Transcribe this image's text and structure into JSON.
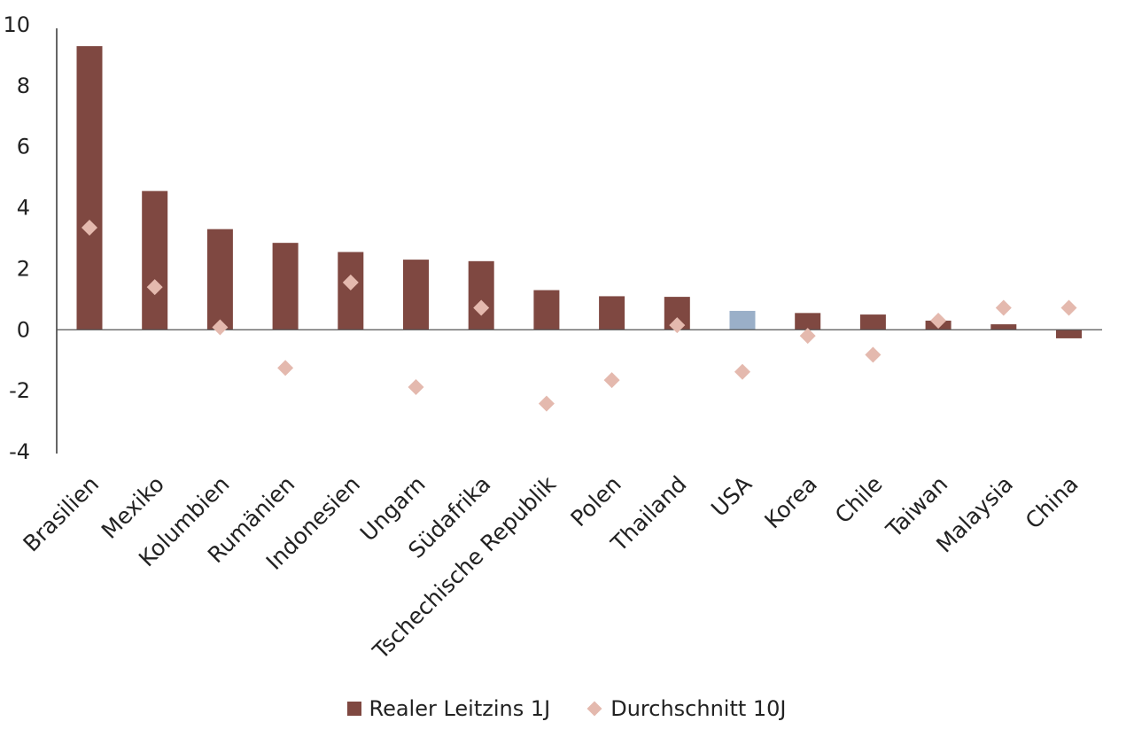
{
  "chart_data": {
    "type": "bar",
    "categories": [
      "Brasilien",
      "Mexiko",
      "Kolumbien",
      "Rumänien",
      "Indonesien",
      "Ungarn",
      "Südafrika",
      "Tschechische Republik",
      "Polen",
      "Thailand",
      "USA",
      "Korea",
      "Chile",
      "Taiwan",
      "Malaysia",
      "China"
    ],
    "series": [
      {
        "name": "Realer Leitzins 1J",
        "kind": "bar",
        "color": "#7f4841",
        "highlight": {
          "USA": "#9aafc8"
        },
        "values": [
          9.3,
          4.55,
          3.3,
          2.85,
          2.55,
          2.3,
          2.25,
          1.3,
          1.1,
          1.08,
          0.62,
          0.55,
          0.5,
          0.3,
          0.18,
          -0.28
        ]
      },
      {
        "name": "Durchschnitt 10J",
        "kind": "diamond",
        "color": "#e4b9ae",
        "values": [
          3.35,
          1.4,
          0.08,
          -1.25,
          1.55,
          -1.88,
          0.72,
          -2.42,
          -1.65,
          0.15,
          -1.38,
          -0.2,
          -0.82,
          0.3,
          0.72,
          0.72
        ]
      }
    ],
    "yticks": [
      10,
      8,
      6,
      4,
      2,
      0,
      -2,
      -4
    ],
    "ylim": [
      -4,
      10
    ],
    "grid": false,
    "legend_position": "bottom"
  }
}
